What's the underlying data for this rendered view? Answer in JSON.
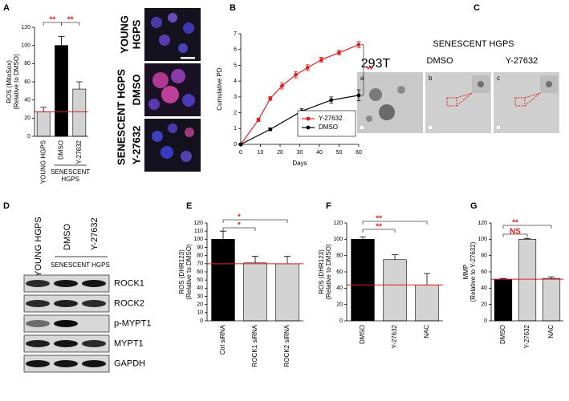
{
  "panel_labels": [
    "A",
    "B",
    "C",
    "D",
    "E",
    "F",
    "G"
  ],
  "panel_a_images": {
    "group": "SENESCENT HGPS",
    "rows": [
      [
        "YOUNG",
        "HGPS"
      ],
      [
        "DMSO"
      ],
      [
        "Y-27632"
      ]
    ]
  },
  "panel_c": {
    "title": "SENESCENT HGPS",
    "columns": [
      "293T",
      "DMSO",
      "Y-27632"
    ],
    "tags": [
      "a",
      "b",
      "c"
    ]
  },
  "panel_d": {
    "columns": [
      "YOUNG HGPS",
      "DMSO",
      "Y-27632"
    ],
    "group": "SENESCENT HGPS",
    "rows": [
      "ROCK1",
      "ROCK2",
      "p-MYPT1",
      "MYPT1",
      "GAPDH"
    ]
  },
  "chart_data": [
    {
      "type": "bar",
      "ylabel": [
        "ROS (MitoSox)",
        "(Relative to DMSO)"
      ],
      "categories": [
        "YOUNG HGPS",
        "DMSO",
        "Y-27632"
      ],
      "values": [
        27,
        100,
        52
      ],
      "errors": [
        5,
        10,
        8
      ],
      "colors": [
        "#d3d3d3",
        "#000000",
        "#d3d3d3"
      ],
      "group": {
        "label": [
          "SENESCENT",
          "HGPS"
        ],
        "categories": [
          1,
          2
        ]
      },
      "ref_line": 27,
      "ref_color": "#e02020",
      "ylim": [
        0,
        120
      ],
      "yticks": [
        0,
        20,
        40,
        60,
        80,
        100,
        120
      ],
      "annotations": [
        {
          "text": "**",
          "color": "#e02020"
        },
        {
          "text": "**",
          "color": "#e02020"
        }
      ]
    },
    {
      "type": "line",
      "xlabel": "Days",
      "ylabel": [
        "Cumulative PD"
      ],
      "series": [
        {
          "name": "Y-27632",
          "color": "#e02020",
          "x": [
            0,
            9,
            15,
            21,
            28,
            34,
            41,
            50,
            60
          ],
          "values": [
            0,
            1.55,
            2.9,
            3.7,
            4.4,
            4.85,
            5.35,
            5.8,
            6.3
          ],
          "errors": [
            0.05,
            0.1,
            0.12,
            0.2,
            0.2,
            0.18,
            0.15,
            0.15,
            0.2
          ]
        },
        {
          "name": "DMSO",
          "color": "#000000",
          "x": [
            0,
            15,
            31,
            46,
            60
          ],
          "values": [
            0,
            0.95,
            2.1,
            2.8,
            3.1
          ],
          "errors": [
            0.05,
            0.08,
            0.15,
            0.2,
            0.35
          ]
        }
      ],
      "xlim": [
        0,
        60
      ],
      "xticks": [
        0,
        10,
        20,
        30,
        40,
        50,
        60
      ],
      "ylim": [
        0,
        7
      ],
      "yticks": [
        0,
        1,
        2,
        3,
        4,
        5,
        6,
        7
      ],
      "legend": "lower right",
      "annotations": [
        {
          "text": "**",
          "color": "#e02020"
        }
      ]
    },
    {
      "type": "bar",
      "ylabel": [
        "ROS (DHR123)",
        "(Relative to DMSO)"
      ],
      "categories": [
        "Ctrl siRNA",
        "ROCK1 siRNA",
        "ROCK2 siRNA"
      ],
      "values": [
        100,
        71,
        70
      ],
      "errors": [
        10,
        8,
        9
      ],
      "colors": [
        "#000000",
        "#d3d3d3",
        "#d3d3d3"
      ],
      "ref_line": 70,
      "ref_color": "#e02020",
      "ylim": [
        0,
        120
      ],
      "yticks": [
        0,
        10,
        20,
        30,
        40,
        50,
        60,
        70,
        80,
        90,
        100,
        110,
        120
      ],
      "annotations": [
        {
          "text": "*",
          "color": "#e02020"
        },
        {
          "text": "*",
          "color": "#e02020"
        }
      ]
    },
    {
      "type": "bar",
      "ylabel": [
        "ROS (DHR123)",
        "(Relative to DMSO)"
      ],
      "categories": [
        "DMSO",
        "Y-27632",
        "NAC"
      ],
      "values": [
        100,
        75,
        44
      ],
      "errors": [
        3,
        6,
        14
      ],
      "colors": [
        "#000000",
        "#d3d3d3",
        "#d3d3d3"
      ],
      "ref_line": 44,
      "ref_color": "#e02020",
      "ylim": [
        0,
        120
      ],
      "yticks": [
        0,
        20,
        40,
        60,
        80,
        100,
        120
      ],
      "annotations": [
        {
          "text": "**",
          "color": "#e02020"
        },
        {
          "text": "**",
          "color": "#e02020"
        }
      ]
    },
    {
      "type": "bar",
      "ylabel": [
        "MMP",
        "(Relative to Y-27632)"
      ],
      "categories": [
        "DMSO",
        "Y-27632",
        "NAC"
      ],
      "values": [
        51,
        100,
        52
      ],
      "errors": [
        1,
        1,
        2
      ],
      "colors": [
        "#000000",
        "#d3d3d3",
        "#d3d3d3"
      ],
      "ref_line": 51,
      "ref_color": "#e02020",
      "ylim": [
        0,
        120
      ],
      "yticks": [
        0,
        20,
        40,
        60,
        80,
        100,
        120
      ],
      "annotations": [
        {
          "text": "NS",
          "color": "#e02020"
        },
        {
          "text": "**",
          "color": "#e02020"
        }
      ]
    }
  ]
}
